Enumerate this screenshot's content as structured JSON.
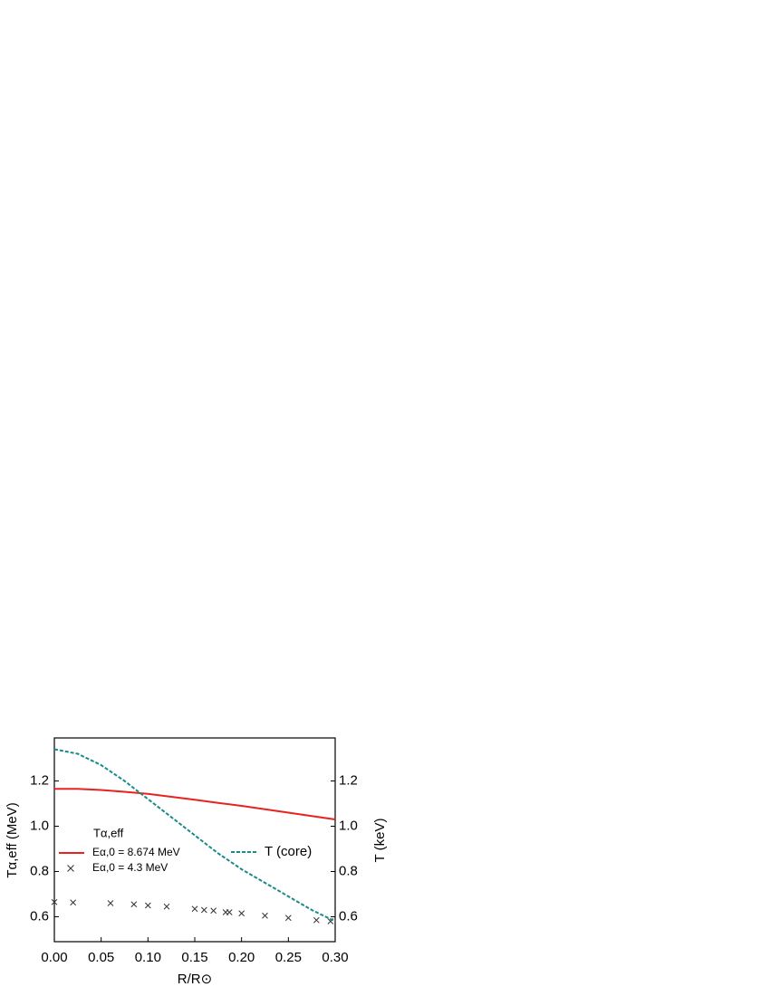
{
  "chart_data": {
    "type": "line",
    "xlabel": "R/R⊙",
    "ylabel": "Tα,eff (MeV)",
    "y2label": "T (keV)",
    "xlim": [
      0,
      0.3
    ],
    "xticks": [
      {
        "value": 0,
        "label": "0.00"
      },
      0.05,
      {
        "value": 0.1,
        "label": "0.10"
      },
      0.15,
      {
        "value": 0.2,
        "label": "0.20"
      },
      0.25,
      {
        "value": 0.3,
        "label": "0.30"
      }
    ],
    "ylim": [
      0.49,
      1.39
    ],
    "yticks": [
      0.6,
      0.8,
      {
        "value": 1,
        "label": "1.0"
      },
      1.2
    ],
    "y2lim": [
      0.49,
      1.39
    ],
    "y2ticks": [
      0.6,
      0.8,
      {
        "value": 1,
        "label": "1.0"
      },
      1.2
    ],
    "legend_title": "Tα,eff",
    "series": [
      {
        "name": "Eα,0 = 8.674 MeV",
        "color": "#e8231e",
        "style": "solid",
        "x": [
          0,
          0.025,
          0.05,
          0.075,
          0.1,
          0.125,
          0.15,
          0.175,
          0.2,
          0.225,
          0.25,
          0.275,
          0.3
        ],
        "values": [
          1.165,
          1.165,
          1.16,
          1.152,
          1.143,
          1.13,
          1.117,
          1.103,
          1.09,
          1.075,
          1.06,
          1.045,
          1.03
        ]
      },
      {
        "name": "Eα,0 = 4.3 MeV",
        "color": "#333333",
        "style": "markers",
        "x": [
          0,
          0.02,
          0.06,
          0.085,
          0.1,
          0.12,
          0.15,
          0.16,
          0.17,
          0.183,
          0.187,
          0.2,
          0.225,
          0.25,
          0.28,
          0.295
        ],
        "values": [
          0.665,
          0.663,
          0.66,
          0.655,
          0.65,
          0.645,
          0.635,
          0.63,
          0.627,
          0.62,
          0.62,
          0.615,
          0.605,
          0.595,
          0.585,
          0.58
        ]
      },
      {
        "name": "T (core)",
        "color": "#1a8a8a",
        "style": "dashed",
        "axis": "y2",
        "x": [
          0,
          0.025,
          0.05,
          0.075,
          0.1,
          0.125,
          0.15,
          0.175,
          0.2,
          0.225,
          0.25,
          0.275,
          0.3
        ],
        "values": [
          1.34,
          1.32,
          1.27,
          1.2,
          1.12,
          1.04,
          0.96,
          0.88,
          0.81,
          0.75,
          0.69,
          0.63,
          0.58
        ]
      }
    ]
  }
}
